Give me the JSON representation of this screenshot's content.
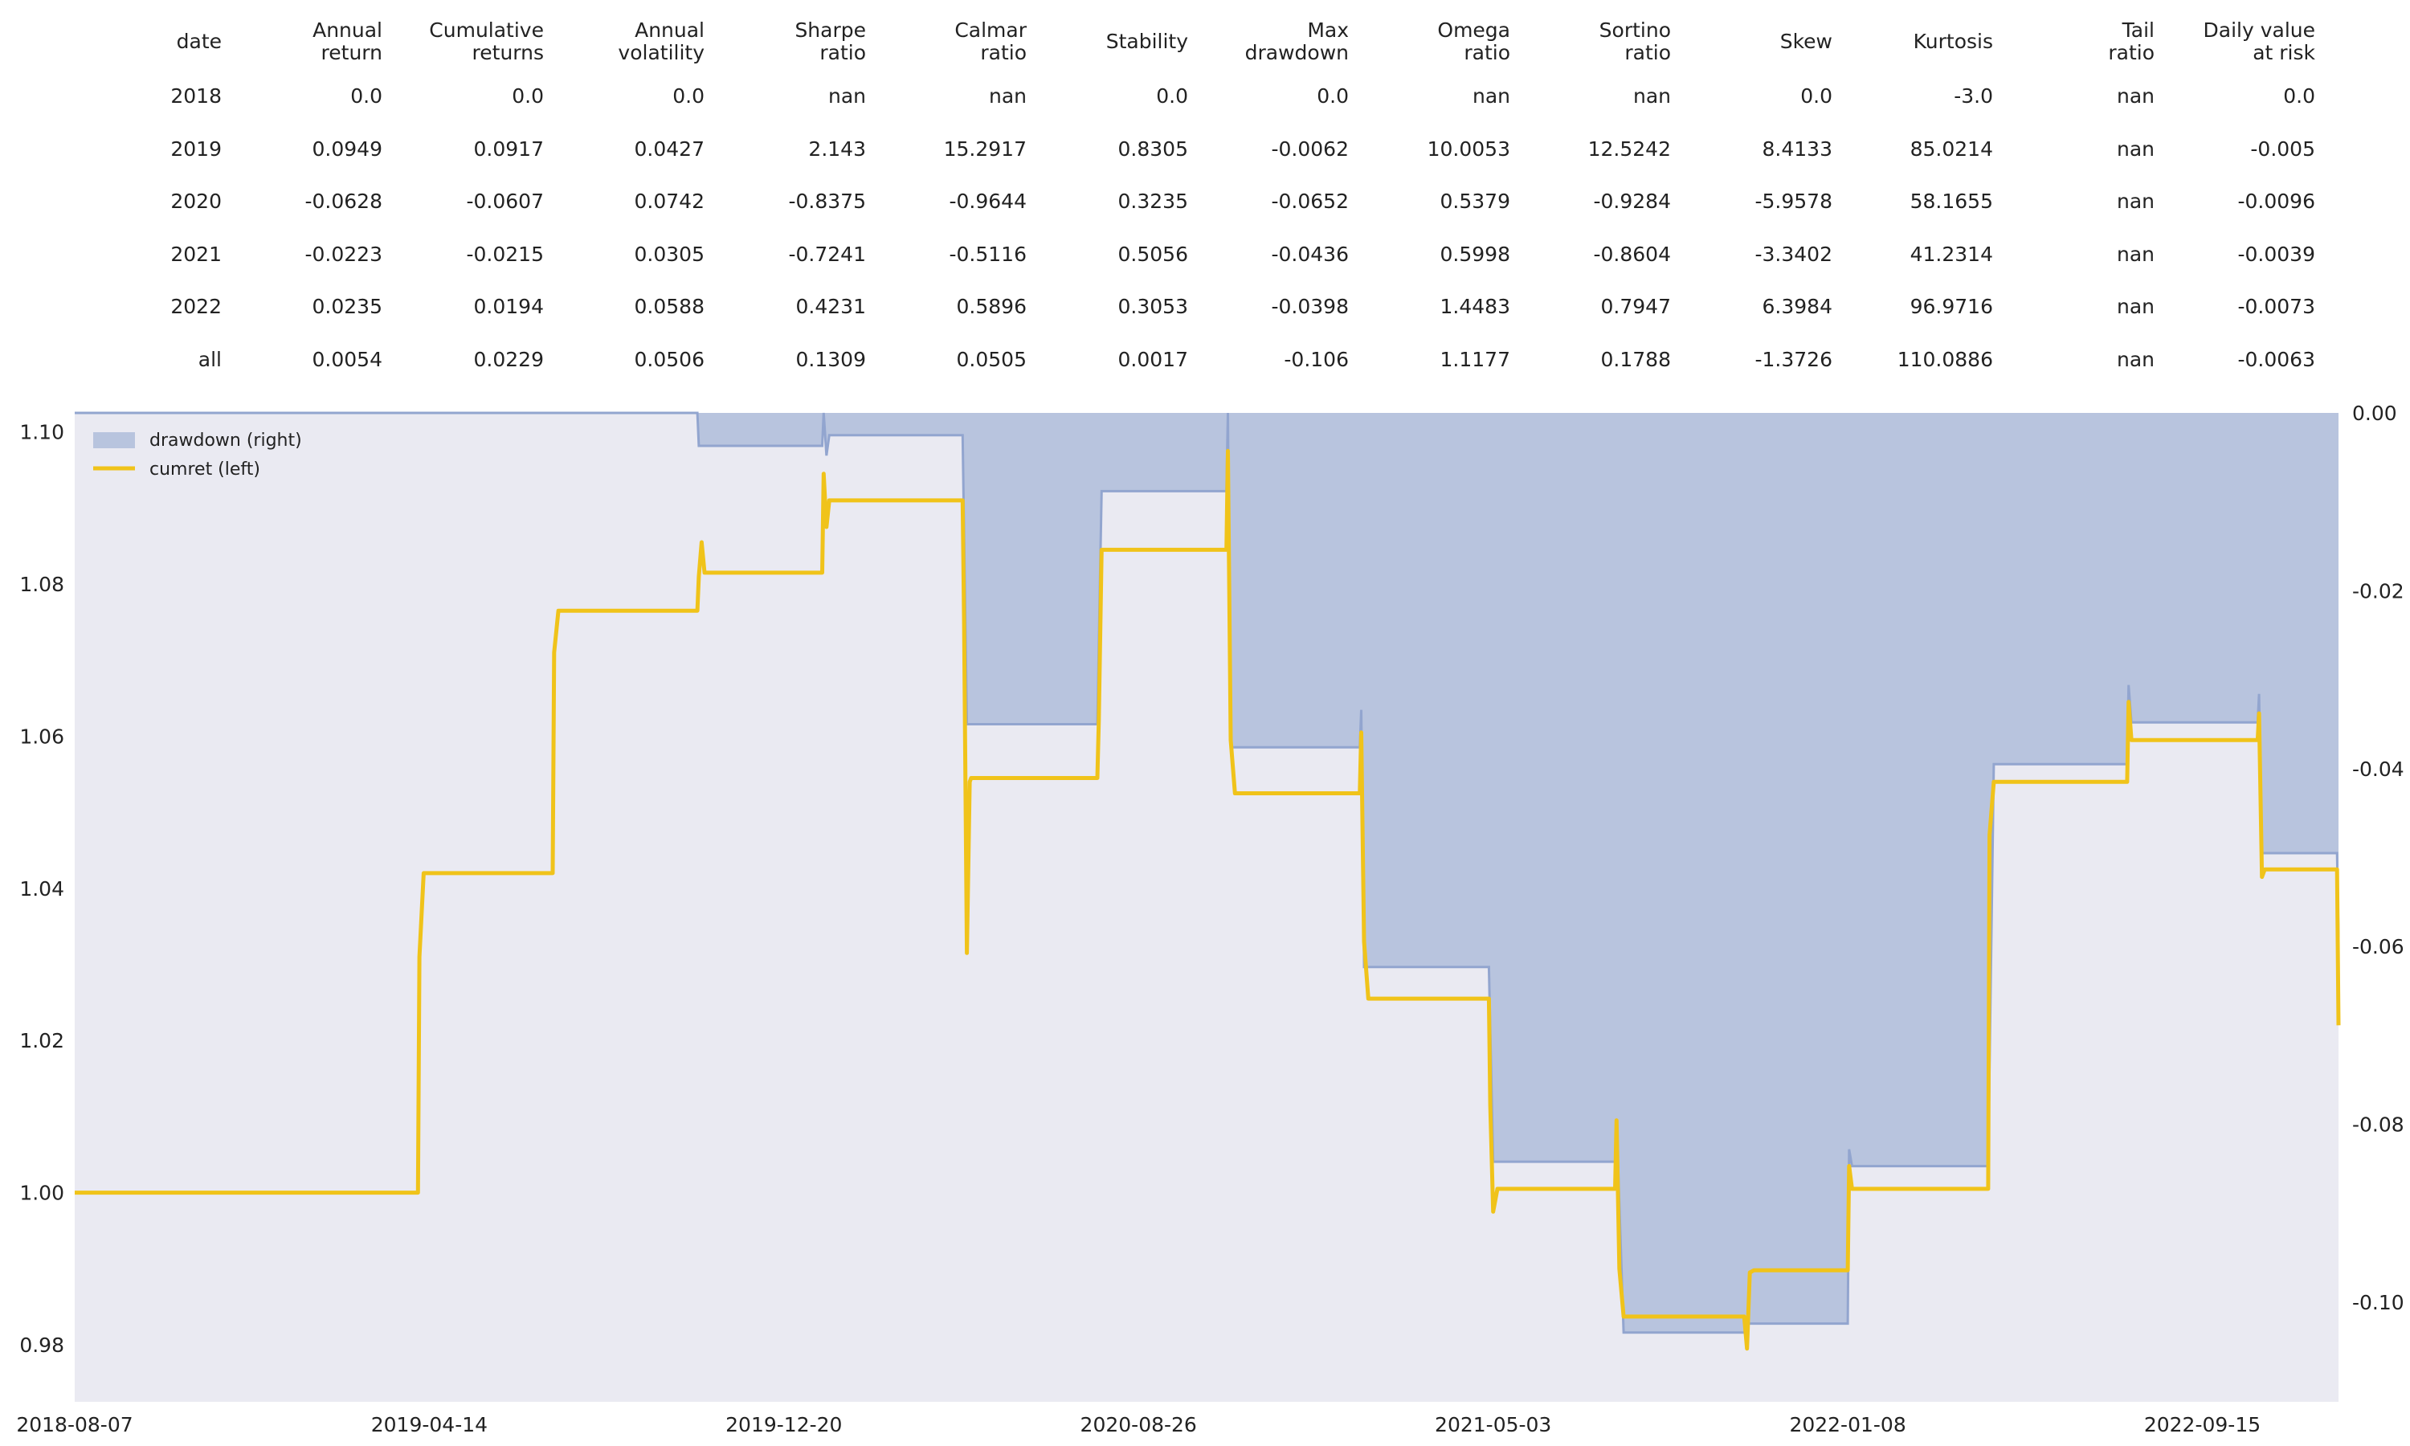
{
  "table": {
    "columns": [
      [
        "date"
      ],
      [
        "Annual",
        "return"
      ],
      [
        "Cumulative",
        "returns"
      ],
      [
        "Annual",
        "volatility"
      ],
      [
        "Sharpe",
        "ratio"
      ],
      [
        "Calmar",
        "ratio"
      ],
      [
        "Stability"
      ],
      [
        "Max",
        "drawdown"
      ],
      [
        "Omega",
        "ratio"
      ],
      [
        "Sortino",
        "ratio"
      ],
      [
        "Skew"
      ],
      [
        "Kurtosis"
      ],
      [
        "Tail",
        "ratio"
      ],
      [
        "Daily value",
        "at risk"
      ]
    ],
    "rows": [
      [
        "2018",
        "0.0",
        "0.0",
        "0.0",
        "nan",
        "nan",
        "0.0",
        "0.0",
        "nan",
        "nan",
        "0.0",
        "-3.0",
        "nan",
        "0.0"
      ],
      [
        "2019",
        "0.0949",
        "0.0917",
        "0.0427",
        "2.143",
        "15.2917",
        "0.8305",
        "-0.0062",
        "10.0053",
        "12.5242",
        "8.4133",
        "85.0214",
        "nan",
        "-0.005"
      ],
      [
        "2020",
        "-0.0628",
        "-0.0607",
        "0.0742",
        "-0.8375",
        "-0.9644",
        "0.3235",
        "-0.0652",
        "0.5379",
        "-0.9284",
        "-5.9578",
        "58.1655",
        "nan",
        "-0.0096"
      ],
      [
        "2021",
        "-0.0223",
        "-0.0215",
        "0.0305",
        "-0.7241",
        "-0.5116",
        "0.5056",
        "-0.0436",
        "0.5998",
        "-0.8604",
        "-3.3402",
        "41.2314",
        "nan",
        "-0.0039"
      ],
      [
        "2022",
        "0.0235",
        "0.0194",
        "0.0588",
        "0.4231",
        "0.5896",
        "0.3053",
        "-0.0398",
        "1.4483",
        "0.7947",
        "6.3984",
        "96.9716",
        "nan",
        "-0.0073"
      ],
      [
        "all",
        "0.0054",
        "0.0229",
        "0.0506",
        "0.1309",
        "0.0505",
        "0.0017",
        "-0.106",
        "1.1177",
        "0.1788",
        "-1.3726",
        "110.0886",
        "nan",
        "-0.0063"
      ]
    ]
  },
  "chart_data": {
    "type": "line",
    "legend": {
      "position": "top-left",
      "items": [
        "drawdown (right)",
        "cumret (left)"
      ]
    },
    "x_ticks": [
      "2018-08-07",
      "2019-04-14",
      "2019-12-20",
      "2020-08-26",
      "2021-05-03",
      "2022-01-08",
      "2022-09-15"
    ],
    "x_range": [
      "2018-08-07",
      "2022-12-20"
    ],
    "y_left": {
      "range": [
        0.9725,
        1.1025
      ],
      "ticks": [
        "0.98",
        "1.00",
        "1.02",
        "1.04",
        "1.06",
        "1.08",
        "1.10"
      ]
    },
    "y_right": {
      "range": [
        -0.1112,
        0.0
      ],
      "ticks": [
        "-0.10",
        "-0.08",
        "-0.06",
        "-0.04",
        "-0.02",
        "0.00"
      ]
    },
    "grid": false,
    "colors": {
      "cumret": "#f0c31a",
      "drawdown_fill": "#b8c4de",
      "drawdown_edge": "#92a5cf",
      "plot_bg": "#eaeaf2"
    },
    "series": [
      {
        "name": "cumret (left)",
        "axis": "left",
        "points": [
          [
            "2018-08-07",
            1.0
          ],
          [
            "2019-04-06",
            1.0
          ],
          [
            "2019-04-07",
            1.031
          ],
          [
            "2019-04-10",
            1.042
          ],
          [
            "2019-07-10",
            1.042
          ],
          [
            "2019-07-11",
            1.071
          ],
          [
            "2019-07-14",
            1.0765
          ],
          [
            "2019-10-20",
            1.0765
          ],
          [
            "2019-10-21",
            1.081
          ],
          [
            "2019-10-23",
            1.0855
          ],
          [
            "2019-10-25",
            1.0815
          ],
          [
            "2020-01-16",
            1.0815
          ],
          [
            "2020-01-17",
            1.0945
          ],
          [
            "2020-01-19",
            1.0875
          ],
          [
            "2020-01-21",
            1.091
          ],
          [
            "2020-04-24",
            1.091
          ],
          [
            "2020-04-25",
            1.075
          ],
          [
            "2020-04-27",
            1.0315
          ],
          [
            "2020-04-29",
            1.054
          ],
          [
            "2020-04-30",
            1.0545
          ],
          [
            "2020-07-28",
            1.0545
          ],
          [
            "2020-07-29",
            1.062
          ],
          [
            "2020-07-31",
            1.0845
          ],
          [
            "2020-10-27",
            1.0845
          ],
          [
            "2020-10-28",
            1.0975
          ],
          [
            "2020-10-30",
            1.0595
          ],
          [
            "2020-11-02",
            1.0525
          ],
          [
            "2021-01-29",
            1.0525
          ],
          [
            "2021-01-30",
            1.0605
          ],
          [
            "2021-02-01",
            1.033
          ],
          [
            "2021-02-04",
            1.0255
          ],
          [
            "2021-04-30",
            1.0255
          ],
          [
            "2021-05-01",
            1.0115
          ],
          [
            "2021-05-03",
            0.9975
          ],
          [
            "2021-05-06",
            1.0005
          ],
          [
            "2021-07-28",
            1.0005
          ],
          [
            "2021-07-29",
            1.0095
          ],
          [
            "2021-07-31",
            0.99
          ],
          [
            "2021-08-03",
            0.9837
          ],
          [
            "2021-10-27",
            0.9837
          ],
          [
            "2021-10-29",
            0.9795
          ],
          [
            "2021-10-31",
            0.9895
          ],
          [
            "2021-11-03",
            0.9898
          ],
          [
            "2022-01-08",
            0.9898
          ],
          [
            "2022-01-09",
            1.0035
          ],
          [
            "2022-01-11",
            1.0005
          ],
          [
            "2022-01-13",
            1.0005
          ],
          [
            "2022-04-17",
            1.0005
          ],
          [
            "2022-04-18",
            1.047
          ],
          [
            "2022-04-21",
            1.054
          ],
          [
            "2022-07-24",
            1.054
          ],
          [
            "2022-07-25",
            1.0645
          ],
          [
            "2022-07-27",
            1.0595
          ],
          [
            "2022-07-29",
            1.0595
          ],
          [
            "2022-10-24",
            1.0595
          ],
          [
            "2022-10-25",
            1.063
          ],
          [
            "2022-10-27",
            1.0415
          ],
          [
            "2022-10-29",
            1.0425
          ],
          [
            "2022-12-19",
            1.0425
          ],
          [
            "2022-12-20",
            1.022
          ]
        ]
      },
      {
        "name": "drawdown (right)",
        "axis": "right",
        "points": [
          [
            "2018-08-07",
            0.0
          ],
          [
            "2019-10-20",
            0.0
          ],
          [
            "2019-10-21",
            -0.0037
          ],
          [
            "2019-10-23",
            -0.0037
          ],
          [
            "2020-01-16",
            -0.0037
          ],
          [
            "2020-01-17",
            0.0
          ],
          [
            "2020-01-19",
            -0.0048
          ],
          [
            "2020-01-21",
            -0.0025
          ],
          [
            "2020-04-24",
            -0.0025
          ],
          [
            "2020-04-27",
            -0.035
          ],
          [
            "2020-07-28",
            -0.035
          ],
          [
            "2020-07-31",
            -0.0088
          ],
          [
            "2020-10-27",
            -0.0088
          ],
          [
            "2020-10-28",
            0.0
          ],
          [
            "2020-10-30",
            -0.0376
          ],
          [
            "2021-01-29",
            -0.0376
          ],
          [
            "2021-01-30",
            -0.0334
          ],
          [
            "2021-02-01",
            -0.0623
          ],
          [
            "2021-04-30",
            -0.0623
          ],
          [
            "2021-05-03",
            -0.0842
          ],
          [
            "2021-07-28",
            -0.0842
          ],
          [
            "2021-07-29",
            -0.0795
          ],
          [
            "2021-08-03",
            -0.1034
          ],
          [
            "2021-10-27",
            -0.1034
          ],
          [
            "2021-10-29",
            -0.1024
          ],
          [
            "2022-01-08",
            -0.1024
          ],
          [
            "2022-01-09",
            -0.0828
          ],
          [
            "2022-01-11",
            -0.0847
          ],
          [
            "2022-04-17",
            -0.0847
          ],
          [
            "2022-04-21",
            -0.0395
          ],
          [
            "2022-07-24",
            -0.0395
          ],
          [
            "2022-07-25",
            -0.0306
          ],
          [
            "2022-07-27",
            -0.0348
          ],
          [
            "2022-10-24",
            -0.0348
          ],
          [
            "2022-10-25",
            -0.0316
          ],
          [
            "2022-10-27",
            -0.0495
          ],
          [
            "2022-12-19",
            -0.0495
          ],
          [
            "2022-12-20",
            -0.059
          ]
        ]
      }
    ]
  }
}
